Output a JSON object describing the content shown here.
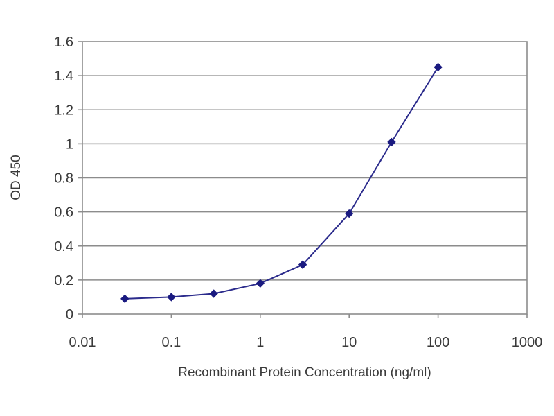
{
  "chart_data": {
    "type": "line",
    "title": "",
    "xlabel": "Recombinant Protein Concentration (ng/ml)",
    "ylabel": "OD 450",
    "x_scale": "log",
    "xlim": [
      0.01,
      1000
    ],
    "ylim": [
      0,
      1.6
    ],
    "x_ticks": [
      "0.01",
      "0.1",
      "1",
      "10",
      "100",
      "1000"
    ],
    "y_ticks": [
      "0",
      "0.2",
      "0.4",
      "0.6",
      "0.8",
      "1",
      "1.2",
      "1.4",
      "1.6"
    ],
    "grid": "horizontal",
    "legend": "none",
    "series": [
      {
        "color": "#2b2b8c",
        "marker": "diamond",
        "x": [
          0.03,
          0.1,
          0.3,
          1,
          3,
          10,
          30,
          100
        ],
        "y": [
          0.09,
          0.1,
          0.12,
          0.18,
          0.29,
          0.59,
          1.01,
          1.45
        ]
      }
    ]
  }
}
